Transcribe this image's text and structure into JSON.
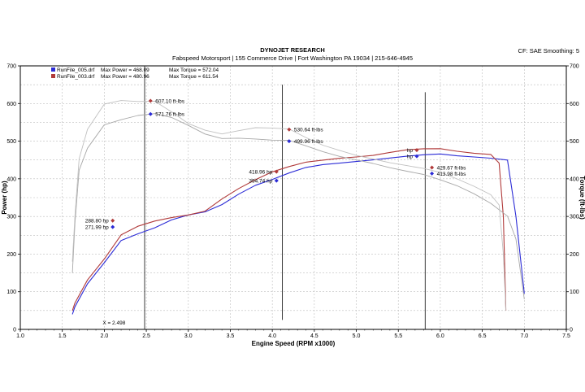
{
  "header": {
    "title": "DYNOJET RESEARCH",
    "subtitle": "Fabspeed Motorsport | 155 Commerce Drive | Fort Washington PA 19034 | 215-646-4945",
    "settings": "CF: SAE  Smoothing: 5"
  },
  "chart_data": {
    "type": "line",
    "xlabel": "Engine Speed (RPM x1000)",
    "ylabel_left": "Power (hp)",
    "ylabel_right": "Torque (ft-lbs)",
    "xlim": [
      1.0,
      7.5
    ],
    "ylim": [
      0,
      700
    ],
    "x_ticks": [
      "1.0",
      "1.5",
      "2.0",
      "2.5",
      "3.0",
      "3.5",
      "4.0",
      "4.5",
      "5.0",
      "5.5",
      "6.0",
      "6.5",
      "7.0",
      "7.5"
    ],
    "y_ticks": [
      "0",
      "100",
      "200",
      "300",
      "400",
      "500",
      "600",
      "700"
    ],
    "grid": true,
    "legend": [
      {
        "file": "RunFile_005.drf",
        "power_label": "Max Power = 468.09",
        "torque_label": "Max Torque = 572.04",
        "color": "#2b2bd6"
      },
      {
        "file": "RunFile_003.drf",
        "power_label": "Max Power = 480.96",
        "torque_label": "Max Torque = 611.54",
        "color": "#b03a3a"
      }
    ],
    "series": [
      {
        "name": "RunFile_005.drf",
        "kind": "power",
        "color": "#2b2bd6",
        "x": [
          1.62,
          1.65,
          1.8,
          2.0,
          2.2,
          2.4,
          2.6,
          2.8,
          3.0,
          3.2,
          3.4,
          3.6,
          3.8,
          4.0,
          4.2,
          4.4,
          4.6,
          4.8,
          5.0,
          5.2,
          5.4,
          5.6,
          5.8,
          6.0,
          6.2,
          6.4,
          6.6,
          6.8,
          6.9,
          7.0
        ],
        "y": [
          40,
          60,
          120,
          175,
          235,
          255,
          272,
          292,
          303,
          310,
          330,
          360,
          385,
          400,
          415,
          428,
          436,
          442,
          448,
          452,
          455,
          458,
          462,
          466,
          463,
          460,
          455,
          448,
          300,
          95
        ]
      },
      {
        "name": "RunFile_003.drf",
        "kind": "power",
        "color": "#b03a3a",
        "x": [
          1.62,
          1.65,
          1.8,
          2.0,
          2.2,
          2.4,
          2.6,
          2.8,
          3.0,
          3.2,
          3.4,
          3.6,
          3.8,
          4.0,
          4.2,
          4.4,
          4.6,
          4.8,
          5.0,
          5.2,
          5.4,
          5.6,
          5.8,
          6.0,
          6.2,
          6.4,
          6.6,
          6.7,
          6.75,
          6.78
        ],
        "y": [
          50,
          70,
          130,
          185,
          250,
          275,
          290,
          298,
          303,
          312,
          345,
          375,
          400,
          420,
          432,
          442,
          448,
          455,
          460,
          464,
          470,
          475,
          478,
          480,
          475,
          470,
          465,
          440,
          300,
          50
        ]
      },
      {
        "name": "RunFile_005.drf",
        "kind": "torque",
        "color": "#a8a8a8",
        "x": [
          1.62,
          1.65,
          1.7,
          1.8,
          2.0,
          2.2,
          2.4,
          2.6,
          2.8,
          3.0,
          3.2,
          3.4,
          3.6,
          3.8,
          4.0,
          4.2,
          4.4,
          4.6,
          4.8,
          5.0,
          5.2,
          5.4,
          5.6,
          5.8,
          6.0,
          6.2,
          6.4,
          6.6,
          6.8,
          6.9,
          7.0
        ],
        "y": [
          150,
          280,
          420,
          480,
          545,
          560,
          570,
          572,
          560,
          540,
          520,
          510,
          510,
          505,
          500,
          500,
          488,
          475,
          462,
          450,
          438,
          427,
          420,
          414,
          400,
          382,
          358,
          332,
          300,
          240,
          80
        ]
      },
      {
        "name": "RunFile_003.drf",
        "kind": "torque",
        "color": "#c0c0c0",
        "x": [
          1.62,
          1.65,
          1.7,
          1.8,
          2.0,
          2.2,
          2.4,
          2.6,
          2.8,
          3.0,
          3.2,
          3.4,
          3.6,
          3.8,
          4.0,
          4.2,
          4.4,
          4.6,
          4.8,
          5.0,
          5.2,
          5.4,
          5.6,
          5.8,
          6.0,
          6.2,
          6.4,
          6.6,
          6.7,
          6.75,
          6.78
        ],
        "y": [
          180,
          300,
          450,
          530,
          600,
          611,
          607,
          605,
          575,
          545,
          530,
          522,
          530,
          535,
          532,
          530,
          510,
          492,
          478,
          462,
          450,
          440,
          435,
          430,
          420,
          400,
          378,
          355,
          330,
          200,
          50
        ]
      }
    ],
    "annotations": [
      {
        "text": "607.10 ft-lbs",
        "x": 2.55,
        "y": 607,
        "color": "#b03a3a"
      },
      {
        "text": "571.76 ft-lbs",
        "x": 2.55,
        "y": 572,
        "color": "#2b2bd6"
      },
      {
        "text": "530.64 ft-lbs",
        "x": 4.2,
        "y": 531,
        "color": "#b03a3a"
      },
      {
        "text": "499.96 ft-lbs",
        "x": 4.2,
        "y": 500,
        "color": "#2b2bd6"
      },
      {
        "text": "418.96 hp",
        "x": 4.05,
        "y": 419,
        "color": "#b03a3a",
        "side": "left"
      },
      {
        "text": "394.74 hp",
        "x": 4.05,
        "y": 395,
        "color": "#2b2bd6",
        "side": "left"
      },
      {
        "text": "288.80 hp",
        "x": 2.1,
        "y": 289,
        "color": "#b03a3a",
        "side": "left"
      },
      {
        "text": "271.99 hp",
        "x": 2.1,
        "y": 272,
        "color": "#2b2bd6",
        "side": "left"
      },
      {
        "text": "hp",
        "x": 5.72,
        "y": 476,
        "color": "#b03a3a",
        "side": "left"
      },
      {
        "text": "hp",
        "x": 5.72,
        "y": 460,
        "color": "#2b2bd6",
        "side": "left"
      },
      {
        "text": "429.67 ft-lbs",
        "x": 5.9,
        "y": 430,
        "color": "#b03a3a"
      },
      {
        "text": "413.98 ft-lbs",
        "x": 5.9,
        "y": 414,
        "color": "#2b2bd6"
      },
      {
        "text": "X = 2.498",
        "x": 1.98,
        "y": 18,
        "color": "#000000",
        "plain": true
      }
    ],
    "cursor_lines": [
      {
        "x": 2.48,
        "y_from": 0,
        "y_to": 700
      },
      {
        "x": 4.12,
        "y_from": 25,
        "y_to": 650
      },
      {
        "x": 5.82,
        "y_from": 0,
        "y_to": 630
      }
    ]
  }
}
